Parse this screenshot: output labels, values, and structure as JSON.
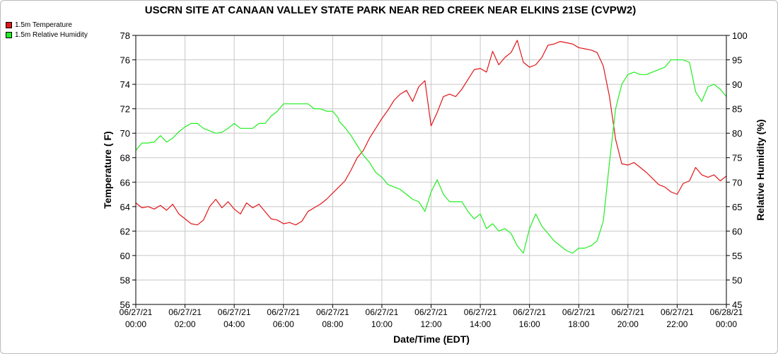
{
  "colors": {
    "temperature": "#e0161a",
    "humidity": "#22ee22",
    "grid": "#c8c8c8",
    "axis": "#000000"
  },
  "chart_data": {
    "type": "line",
    "title": "USCRN SITE AT CANAAN VALLEY STATE PARK NEAR RED CREEK NEAR ELKINS 21SE (CVPW2)",
    "xlabel": "Date/Time (EDT)",
    "ylabel_left": "Temperature ( F)",
    "ylabel_right": "Relative Humidity (%)",
    "xlim": [
      0,
      24
    ],
    "ylim_left": [
      56,
      78
    ],
    "ylim_right": [
      45,
      100
    ],
    "y_ticks_left": [
      56,
      58,
      60,
      62,
      64,
      66,
      68,
      70,
      72,
      74,
      76,
      78
    ],
    "y_ticks_right": [
      45,
      50,
      55,
      60,
      65,
      70,
      75,
      80,
      85,
      90,
      95,
      100
    ],
    "x_ticks": [
      {
        "h": 0,
        "date": "06/27/21",
        "time": "00:00"
      },
      {
        "h": 2,
        "date": "06/27/21",
        "time": "02:00"
      },
      {
        "h": 4,
        "date": "06/27/21",
        "time": "04:00"
      },
      {
        "h": 6,
        "date": "06/27/21",
        "time": "06:00"
      },
      {
        "h": 8,
        "date": "06/27/21",
        "time": "08:00"
      },
      {
        "h": 10,
        "date": "06/27/21",
        "time": "10:00"
      },
      {
        "h": 12,
        "date": "06/27/21",
        "time": "12:00"
      },
      {
        "h": 14,
        "date": "06/27/21",
        "time": "14:00"
      },
      {
        "h": 16,
        "date": "06/27/21",
        "time": "16:00"
      },
      {
        "h": 18,
        "date": "06/27/21",
        "time": "18:00"
      },
      {
        "h": 20,
        "date": "06/27/21",
        "time": "20:00"
      },
      {
        "h": 22,
        "date": "06/27/21",
        "time": "22:00"
      },
      {
        "h": 24,
        "date": "06/28/21",
        "time": "00:00"
      }
    ],
    "grid": true,
    "legend_position": "top-left",
    "series": [
      {
        "name": "1.5m Temperature",
        "axis": "left",
        "color": "#e0161a",
        "points": [
          [
            0,
            64.3
          ],
          [
            0.25,
            63.9
          ],
          [
            0.5,
            64.0
          ],
          [
            0.75,
            63.8
          ],
          [
            1.0,
            64.1
          ],
          [
            1.25,
            63.7
          ],
          [
            1.5,
            64.2
          ],
          [
            1.75,
            63.4
          ],
          [
            2.0,
            63.0
          ],
          [
            2.25,
            62.6
          ],
          [
            2.5,
            62.5
          ],
          [
            2.75,
            62.9
          ],
          [
            3.0,
            64.0
          ],
          [
            3.25,
            64.6
          ],
          [
            3.5,
            63.9
          ],
          [
            3.75,
            64.4
          ],
          [
            4.0,
            63.8
          ],
          [
            4.25,
            63.4
          ],
          [
            4.5,
            64.3
          ],
          [
            4.75,
            63.9
          ],
          [
            5.0,
            64.2
          ],
          [
            5.25,
            63.6
          ],
          [
            5.5,
            63.0
          ],
          [
            5.75,
            62.9
          ],
          [
            6.0,
            62.6
          ],
          [
            6.25,
            62.7
          ],
          [
            6.5,
            62.5
          ],
          [
            6.75,
            62.8
          ],
          [
            7.0,
            63.6
          ],
          [
            7.25,
            63.9
          ],
          [
            7.5,
            64.2
          ],
          [
            7.75,
            64.6
          ],
          [
            8.0,
            65.1
          ],
          [
            8.25,
            65.6
          ],
          [
            8.5,
            66.1
          ],
          [
            8.75,
            67.0
          ],
          [
            9.0,
            68.0
          ],
          [
            9.25,
            68.6
          ],
          [
            9.5,
            69.6
          ],
          [
            9.75,
            70.4
          ],
          [
            10.0,
            71.2
          ],
          [
            10.25,
            71.9
          ],
          [
            10.5,
            72.7
          ],
          [
            10.75,
            73.2
          ],
          [
            11.0,
            73.5
          ],
          [
            11.25,
            72.6
          ],
          [
            11.5,
            73.8
          ],
          [
            11.75,
            74.3
          ],
          [
            12.0,
            70.6
          ],
          [
            12.25,
            71.7
          ],
          [
            12.5,
            73.0
          ],
          [
            12.75,
            73.2
          ],
          [
            13.0,
            73.0
          ],
          [
            13.25,
            73.6
          ],
          [
            13.5,
            74.4
          ],
          [
            13.75,
            75.2
          ],
          [
            14.0,
            75.3
          ],
          [
            14.25,
            75.0
          ],
          [
            14.5,
            76.7
          ],
          [
            14.75,
            75.6
          ],
          [
            15.0,
            76.2
          ],
          [
            15.25,
            76.6
          ],
          [
            15.5,
            77.6
          ],
          [
            15.75,
            75.8
          ],
          [
            16.0,
            75.4
          ],
          [
            16.25,
            75.6
          ],
          [
            16.5,
            76.2
          ],
          [
            16.75,
            77.2
          ],
          [
            17.0,
            77.3
          ],
          [
            17.25,
            77.5
          ],
          [
            17.5,
            77.4
          ],
          [
            17.75,
            77.3
          ],
          [
            18.0,
            77.0
          ],
          [
            18.25,
            76.9
          ],
          [
            18.5,
            76.8
          ],
          [
            18.75,
            76.6
          ],
          [
            19.0,
            75.5
          ],
          [
            19.25,
            73.0
          ],
          [
            19.5,
            69.5
          ],
          [
            19.75,
            67.5
          ],
          [
            20.0,
            67.4
          ],
          [
            20.25,
            67.6
          ],
          [
            20.5,
            67.2
          ],
          [
            20.75,
            66.8
          ],
          [
            21.0,
            66.3
          ],
          [
            21.25,
            65.8
          ],
          [
            21.5,
            65.6
          ],
          [
            21.75,
            65.2
          ],
          [
            22.0,
            65.0
          ],
          [
            22.25,
            65.9
          ],
          [
            22.5,
            66.1
          ],
          [
            22.75,
            67.2
          ],
          [
            23.0,
            66.6
          ],
          [
            23.25,
            66.4
          ],
          [
            23.5,
            66.6
          ],
          [
            23.75,
            66.1
          ],
          [
            24.0,
            66.5
          ]
        ]
      },
      {
        "name": "1.5m Relative Humidity",
        "axis": "right",
        "color": "#22ee22",
        "points": [
          [
            0,
            76.5
          ],
          [
            0.25,
            78.0
          ],
          [
            0.5,
            78.0
          ],
          [
            0.75,
            78.2
          ],
          [
            1.0,
            79.5
          ],
          [
            1.25,
            78.2
          ],
          [
            1.5,
            79.0
          ],
          [
            1.75,
            80.3
          ],
          [
            2.0,
            81.3
          ],
          [
            2.25,
            82.0
          ],
          [
            2.5,
            82.0
          ],
          [
            2.75,
            81.0
          ],
          [
            3.0,
            80.5
          ],
          [
            3.25,
            80.0
          ],
          [
            3.5,
            80.2
          ],
          [
            3.75,
            81.0
          ],
          [
            4.0,
            82.0
          ],
          [
            4.25,
            81.0
          ],
          [
            4.5,
            81.0
          ],
          [
            4.75,
            81.0
          ],
          [
            5.0,
            82.0
          ],
          [
            5.25,
            82.0
          ],
          [
            5.5,
            83.5
          ],
          [
            5.75,
            84.5
          ],
          [
            6.0,
            86.0
          ],
          [
            6.25,
            86.0
          ],
          [
            6.5,
            86.0
          ],
          [
            6.75,
            86.0
          ],
          [
            7.0,
            86.0
          ],
          [
            7.25,
            85.0
          ],
          [
            7.5,
            85.0
          ],
          [
            7.75,
            84.5
          ],
          [
            8.0,
            84.5
          ],
          [
            8.25,
            83.0
          ],
          [
            8.25,
            82.5
          ],
          [
            8.5,
            81.2
          ],
          [
            8.75,
            79.5
          ],
          [
            9.0,
            77.5
          ],
          [
            9.25,
            75.5
          ],
          [
            9.5,
            74.0
          ],
          [
            9.75,
            72.0
          ],
          [
            10.0,
            71.0
          ],
          [
            10.25,
            69.5
          ],
          [
            10.5,
            69.0
          ],
          [
            10.75,
            68.5
          ],
          [
            11.0,
            67.5
          ],
          [
            11.25,
            66.5
          ],
          [
            11.5,
            66.0
          ],
          [
            11.75,
            64.0
          ],
          [
            12.0,
            68.0
          ],
          [
            12.25,
            70.5
          ],
          [
            12.5,
            67.5
          ],
          [
            12.75,
            66.0
          ],
          [
            13.0,
            66.0
          ],
          [
            13.25,
            66.0
          ],
          [
            13.5,
            64.0
          ],
          [
            13.75,
            62.5
          ],
          [
            14.0,
            63.5
          ],
          [
            14.25,
            60.5
          ],
          [
            14.5,
            61.5
          ],
          [
            14.75,
            60.0
          ],
          [
            15.0,
            60.5
          ],
          [
            15.25,
            59.5
          ],
          [
            15.5,
            57.0
          ],
          [
            15.75,
            55.5
          ],
          [
            16.0,
            60.5
          ],
          [
            16.25,
            63.5
          ],
          [
            16.5,
            61.0
          ],
          [
            16.75,
            59.5
          ],
          [
            17.0,
            58.0
          ],
          [
            17.25,
            57.0
          ],
          [
            17.5,
            56.0
          ],
          [
            17.75,
            55.5
          ],
          [
            18.0,
            56.5
          ],
          [
            18.25,
            56.5
          ],
          [
            18.5,
            57.0
          ],
          [
            18.75,
            58.0
          ],
          [
            19.0,
            62.0
          ],
          [
            19.25,
            74.0
          ],
          [
            19.5,
            85.0
          ],
          [
            19.75,
            90.0
          ],
          [
            20.0,
            92.0
          ],
          [
            20.25,
            92.5
          ],
          [
            20.5,
            92.0
          ],
          [
            20.75,
            92.0
          ],
          [
            21.0,
            92.5
          ],
          [
            21.25,
            93.0
          ],
          [
            21.5,
            93.5
          ],
          [
            21.75,
            95.0
          ],
          [
            22.0,
            95.0
          ],
          [
            22.25,
            95.0
          ],
          [
            22.5,
            94.5
          ],
          [
            22.75,
            88.5
          ],
          [
            23.0,
            86.5
          ],
          [
            23.25,
            89.5
          ],
          [
            23.5,
            90.0
          ],
          [
            23.75,
            89.0
          ],
          [
            24.0,
            87.5
          ]
        ]
      }
    ]
  }
}
